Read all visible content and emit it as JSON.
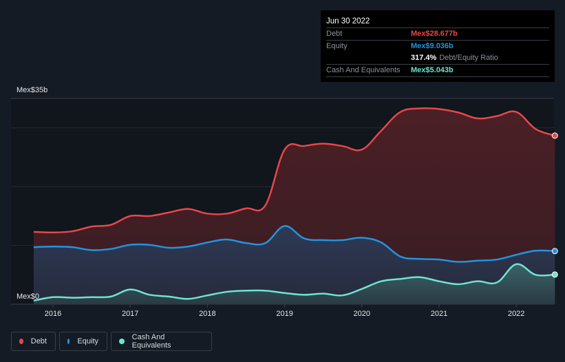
{
  "tooltip": {
    "date": "Jun 30 2022",
    "rows": {
      "debt": {
        "label": "Debt",
        "value": "Mex$28.677b"
      },
      "equity": {
        "label": "Equity",
        "value": "Mex$9.036b"
      },
      "ratio": {
        "value": "317.4%",
        "label": "Debt/Equity Ratio"
      },
      "cash": {
        "label": "Cash And Equivalents",
        "value": "Mex$5.043b"
      }
    }
  },
  "legend": [
    {
      "name": "Debt",
      "color": "#e84749"
    },
    {
      "name": "Equity",
      "color": "#2394df"
    },
    {
      "name": "Cash And Equivalents",
      "color": "#6ce5cf"
    }
  ],
  "chart_data": {
    "type": "area",
    "title": "",
    "xlabel": "",
    "ylabel": "",
    "currency_prefix": "Mex$",
    "y_tick_labels": {
      "top": "Mex$35b",
      "bottom": "Mex$0"
    },
    "ylim": [
      0,
      35
    ],
    "y_unit": "billions MXN",
    "x_ticks": [
      "2016",
      "2017",
      "2018",
      "2019",
      "2020",
      "2021",
      "2022"
    ],
    "x_start": 2015.75,
    "x_step": 0.25,
    "grid": true,
    "legend_position": "bottom-left",
    "series": [
      {
        "name": "Debt",
        "color": "#e84749",
        "fill": "#4a1f25",
        "values": [
          12.3,
          12.2,
          12.4,
          13.2,
          13.5,
          15.0,
          15.0,
          15.6,
          16.2,
          15.4,
          15.4,
          16.3,
          16.8,
          26.3,
          26.9,
          27.3,
          26.9,
          26.3,
          29.5,
          32.7,
          33.3,
          33.2,
          32.6,
          31.6,
          32.0,
          32.7,
          29.8,
          28.677
        ]
      },
      {
        "name": "Equity",
        "color": "#2394df",
        "fill": "#2b3450",
        "values": [
          9.7,
          9.8,
          9.7,
          9.2,
          9.4,
          10.1,
          10.1,
          9.6,
          9.8,
          10.5,
          11.0,
          10.4,
          10.4,
          13.3,
          11.2,
          10.9,
          10.9,
          11.3,
          10.5,
          8.1,
          7.7,
          7.6,
          7.2,
          7.4,
          7.6,
          8.4,
          9.1,
          9.036
        ]
      },
      {
        "name": "Cash And Equivalents",
        "color": "#6ce5cf",
        "fill": "#2e4a52",
        "values": [
          0.6,
          1.2,
          1.1,
          1.2,
          1.3,
          2.5,
          1.6,
          1.3,
          0.9,
          1.5,
          2.1,
          2.3,
          2.3,
          1.9,
          1.6,
          1.8,
          1.5,
          2.6,
          3.9,
          4.3,
          4.6,
          3.9,
          3.4,
          3.9,
          3.7,
          6.8,
          5.0,
          5.043
        ]
      }
    ]
  }
}
